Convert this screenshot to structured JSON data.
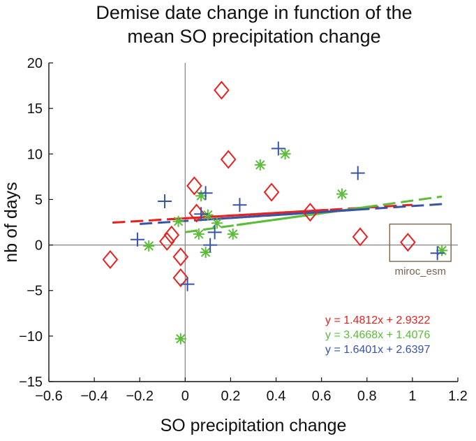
{
  "chart_data": {
    "type": "scatter",
    "title": [
      "Demise date change in function of the",
      "mean SO precipitation change"
    ],
    "xlabel": "SO precipitation change",
    "ylabel": "nb of days",
    "xlim": [
      -0.6,
      1.2
    ],
    "ylim": [
      -15,
      20
    ],
    "xticks": [
      -0.6,
      -0.4,
      -0.2,
      0,
      0.2,
      0.4,
      0.6,
      0.8,
      1,
      1.2
    ],
    "xtick_labels": [
      "−0.6",
      "−0.4",
      "−0.2",
      "0",
      "0.2",
      "0.4",
      "0.6",
      "0.8",
      "1",
      "1.2"
    ],
    "yticks": [
      -15,
      -10,
      -5,
      0,
      5,
      10,
      15,
      20
    ],
    "ytick_labels": [
      "−15",
      "−10",
      "−5",
      "0",
      "5",
      "10",
      "15",
      "20"
    ],
    "grid": false,
    "zero_lines": true,
    "series": [
      {
        "marker": "diamond",
        "color": "#e8201e",
        "points": [
          [
            -0.33,
            -1.6
          ],
          [
            -0.08,
            0.4
          ],
          [
            -0.06,
            1.1
          ],
          [
            -0.02,
            -1.3
          ],
          [
            -0.02,
            -3.6
          ],
          [
            0.04,
            6.5
          ],
          [
            0.05,
            3.5
          ],
          [
            0.16,
            17.0
          ],
          [
            0.19,
            9.4
          ],
          [
            0.38,
            5.8
          ],
          [
            0.55,
            3.6
          ],
          [
            0.77,
            0.9
          ],
          [
            0.98,
            0.3
          ]
        ],
        "fit": {
          "slope": 1.4812,
          "intercept": 2.9322,
          "x": [
            -0.32,
            1.0
          ],
          "equation": "y = 1.4812x + 2.9322"
        }
      },
      {
        "marker": "asterisk",
        "color": "#5cbd3a",
        "points": [
          [
            -0.16,
            -0.1
          ],
          [
            -0.03,
            2.6
          ],
          [
            -0.02,
            -10.3
          ],
          [
            0.06,
            1.2
          ],
          [
            0.07,
            5.4
          ],
          [
            0.09,
            -0.8
          ],
          [
            0.1,
            3.3
          ],
          [
            0.14,
            2.4
          ],
          [
            0.21,
            1.2
          ],
          [
            0.33,
            8.8
          ],
          [
            0.44,
            10.0
          ],
          [
            0.69,
            5.6
          ],
          [
            1.13,
            -0.6
          ]
        ],
        "fit": {
          "slope": 3.4668,
          "intercept": 1.4076,
          "x": [
            0.0,
            1.13
          ],
          "equation": "y = 3.4668x + 1.4076"
        }
      },
      {
        "marker": "plus",
        "color": "#3a54a5",
        "points": [
          [
            -0.21,
            0.6
          ],
          [
            -0.09,
            4.8
          ],
          [
            0.01,
            -4.3
          ],
          [
            0.07,
            3.4
          ],
          [
            0.09,
            5.7
          ],
          [
            0.11,
            0.0
          ],
          [
            0.13,
            1.4
          ],
          [
            0.24,
            4.4
          ],
          [
            0.41,
            10.6
          ],
          [
            0.76,
            7.9
          ],
          [
            1.11,
            -0.9
          ]
        ],
        "fit": {
          "slope": 1.6401,
          "intercept": 2.6397,
          "x": [
            -0.2,
            1.13
          ],
          "equation": "y = 1.6401x + 2.6397"
        }
      }
    ],
    "annotation": {
      "label": "miroc_esm",
      "box": {
        "x0": 0.9,
        "x1": 1.17,
        "y0": -1.8,
        "y1": 2.3
      },
      "color": "#7a6450"
    }
  }
}
